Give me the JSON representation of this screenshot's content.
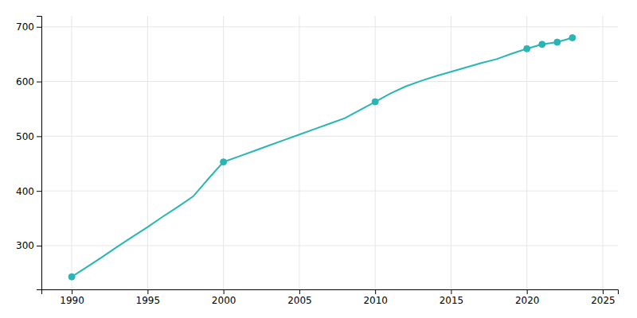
{
  "chart_data": {
    "type": "line",
    "x": [
      1990,
      1991,
      1992,
      1993,
      1994,
      1995,
      1996,
      1997,
      1998,
      1999,
      2000,
      2001,
      2002,
      2003,
      2004,
      2005,
      2006,
      2007,
      2008,
      2009,
      2010,
      2011,
      2012,
      2013,
      2014,
      2015,
      2016,
      2017,
      2018,
      2019,
      2020,
      2021,
      2022,
      2023
    ],
    "series": [
      {
        "color": "#2ab5b5",
        "values": [
          243,
          261,
          279,
          298,
          316,
          334,
          353,
          371,
          390,
          422,
          453,
          463,
          473,
          483,
          493,
          503,
          513,
          523,
          533,
          548,
          563,
          578,
          591,
          601,
          610,
          618,
          626,
          634,
          641,
          651,
          660,
          668,
          672,
          680
        ]
      },
      {
        "type": "scatter",
        "color": "#2ab5b5",
        "marker": "o",
        "x": [
          1990,
          2000,
          2010,
          2020,
          2021,
          2022,
          2023
        ],
        "values": [
          243,
          453,
          563,
          660,
          668,
          672,
          680
        ]
      }
    ],
    "xlim": [
      1988,
      2026
    ],
    "ylim": [
      220,
      720
    ],
    "xticks": [
      1990,
      1995,
      2000,
      2005,
      2010,
      2015,
      2020,
      2025
    ],
    "yticks": [
      300,
      400,
      500,
      600,
      700
    ],
    "grid": true
  }
}
